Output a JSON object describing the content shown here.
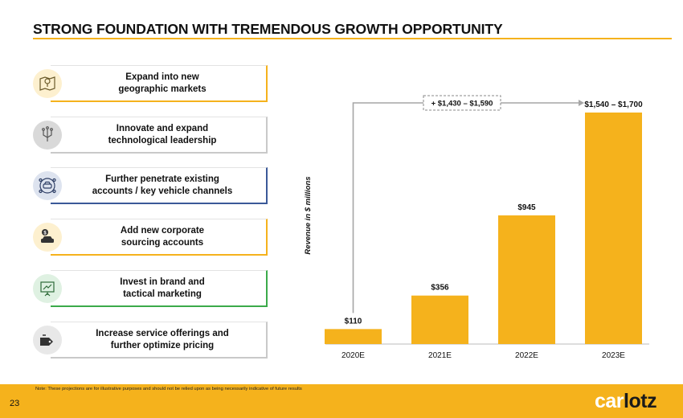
{
  "title": "STRONG FOUNDATION WITH TREMENDOUS GROWTH OPPORTUNITY",
  "colors": {
    "accent": "#F5B21C",
    "bar": "#F5B21C"
  },
  "strategies": [
    {
      "label": "Expand into new\ngeographic markets",
      "icon": "map-pin-icon",
      "border": "#F5B21C",
      "icon_bg": "#FDF0CF"
    },
    {
      "label": "Innovate and expand\ntechnological leadership",
      "icon": "circuit-icon",
      "border": "#c9c9c9",
      "icon_bg": "#d9d9d9"
    },
    {
      "label": "Further penetrate existing\naccounts / key vehicle channels",
      "icon": "car-network-icon",
      "border": "#3B5998",
      "icon_bg": "#DDE3EF"
    },
    {
      "label": "Add new corporate\nsourcing accounts",
      "icon": "car-dollar-icon",
      "border": "#F5B21C",
      "icon_bg": "#FDF0CF"
    },
    {
      "label": "Invest in brand and\ntactical marketing",
      "icon": "presentation-icon",
      "border": "#3BAA4A",
      "icon_bg": "#DFF1E2"
    },
    {
      "label": "Increase service offerings and\nfurther optimize pricing",
      "icon": "pricing-tag-icon",
      "border": "#c9c9c9",
      "icon_bg": "#e8e8e8"
    }
  ],
  "chart_data": {
    "type": "bar",
    "categories": [
      "2020E",
      "2021E",
      "2022E",
      "2023E"
    ],
    "values": [
      110,
      356,
      945,
      1700
    ],
    "data_labels": [
      "$110",
      "$356",
      "$945",
      "$1,540 – $1,700"
    ],
    "ylabel": "Revenue in $ millions",
    "ylim": [
      0,
      1800
    ],
    "grid": false,
    "annotation": {
      "text": "+ $1,430 – $1,590",
      "from": "2020E",
      "to": "2023E"
    }
  },
  "footer": {
    "note": "Note: These projections are for illustrative purposes and should not be relied upon as being necessarily indicative of future results",
    "page_number": "23",
    "logo_part1": "car",
    "logo_part2": "lotz"
  }
}
